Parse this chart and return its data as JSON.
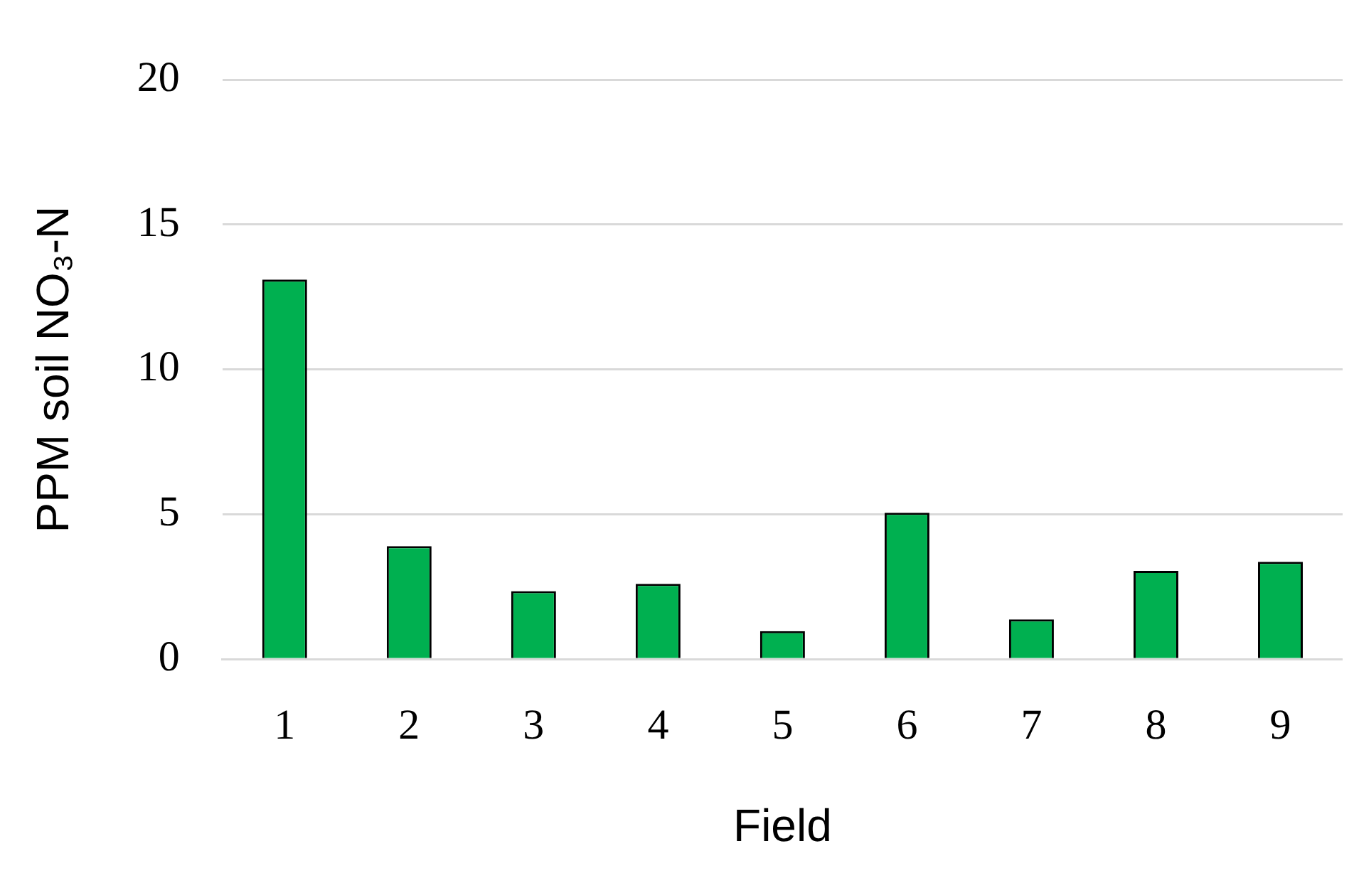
{
  "chart_data": {
    "type": "bar",
    "xlabel": "Field",
    "ylabel": "PPM soil NO₃-N",
    "categories": [
      "1",
      "2",
      "3",
      "4",
      "5",
      "6",
      "7",
      "8",
      "9"
    ],
    "values": [
      13.1,
      3.9,
      2.35,
      2.6,
      0.97,
      5.05,
      1.37,
      3.05,
      3.36
    ],
    "color": "#00b050",
    "ylim": [
      0,
      20
    ],
    "yticks": [
      0,
      5,
      10,
      15,
      20
    ],
    "grid": "y",
    "legend": false
  }
}
